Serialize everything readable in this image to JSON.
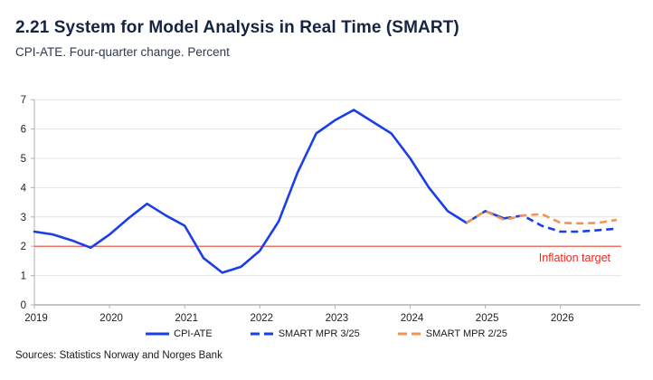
{
  "header": {
    "title": "2.21 System for Model Analysis in Real Time (SMART)",
    "subtitle": "CPI-ATE. Four-quarter change. Percent"
  },
  "source": "Sources: Statistics Norway and Norges Bank",
  "colors": {
    "title": "#172441",
    "subtitle": "#2e3950",
    "text": "#1a1a1a",
    "grid": "#e4e4e4",
    "axis": "#b0b0b0",
    "tick_text": "#222222",
    "target_line": "#ee4b3a",
    "target_text": "#e62a1f",
    "blue": "#1a3ee8",
    "orange": "#f09355"
  },
  "chart_data": {
    "type": "line",
    "title": "2.21 System for Model Analysis in Real Time (SMART)",
    "subtitle": "CPI-ATE. Four-quarter change. Percent",
    "xlabel": "",
    "ylabel": "",
    "ylim": [
      0,
      7
    ],
    "y_ticks": [
      0,
      1,
      2,
      3,
      4,
      5,
      6,
      7
    ],
    "x_ticks": [
      2019,
      2020,
      2021,
      2022,
      2023,
      2024,
      2025,
      2026
    ],
    "grid": true,
    "legend_position": "bottom",
    "annotations": [
      {
        "text": "Inflation target",
        "value": 2
      }
    ],
    "series": [
      {
        "name": "CPI-ATE",
        "style": "solid",
        "color": "#1a3ee8",
        "points": [
          [
            2019.0,
            2.5
          ],
          [
            2019.25,
            2.4
          ],
          [
            2019.5,
            2.2
          ],
          [
            2019.75,
            1.95
          ],
          [
            2020.0,
            2.4
          ],
          [
            2020.25,
            2.95
          ],
          [
            2020.5,
            3.45
          ],
          [
            2020.75,
            3.05
          ],
          [
            2021.0,
            2.7
          ],
          [
            2021.25,
            1.6
          ],
          [
            2021.5,
            1.1
          ],
          [
            2021.75,
            1.3
          ],
          [
            2022.0,
            1.85
          ],
          [
            2022.25,
            2.85
          ],
          [
            2022.5,
            4.5
          ],
          [
            2022.75,
            5.85
          ],
          [
            2023.0,
            6.3
          ],
          [
            2023.25,
            6.65
          ],
          [
            2023.5,
            6.25
          ],
          [
            2023.75,
            5.85
          ],
          [
            2024.0,
            5.0
          ],
          [
            2024.25,
            4.0
          ],
          [
            2024.5,
            3.2
          ],
          [
            2024.75,
            2.8
          ],
          [
            2025.0,
            3.2
          ],
          [
            2025.25,
            2.95
          ]
        ]
      },
      {
        "name": "SMART MPR 3/25",
        "style": "dashed",
        "color": "#1a3ee8",
        "points": [
          [
            2025.25,
            2.95
          ],
          [
            2025.5,
            3.05
          ],
          [
            2025.75,
            2.7
          ],
          [
            2026.0,
            2.5
          ],
          [
            2026.25,
            2.5
          ],
          [
            2026.5,
            2.55
          ],
          [
            2026.75,
            2.6
          ]
        ]
      },
      {
        "name": "SMART MPR 2/25",
        "style": "dashed",
        "color": "#f09355",
        "points": [
          [
            2024.75,
            2.8
          ],
          [
            2025.0,
            3.2
          ],
          [
            2025.25,
            2.9
          ],
          [
            2025.5,
            3.05
          ],
          [
            2025.75,
            3.1
          ],
          [
            2026.0,
            2.8
          ],
          [
            2026.25,
            2.78
          ],
          [
            2026.5,
            2.8
          ],
          [
            2026.75,
            2.9
          ]
        ]
      }
    ]
  }
}
